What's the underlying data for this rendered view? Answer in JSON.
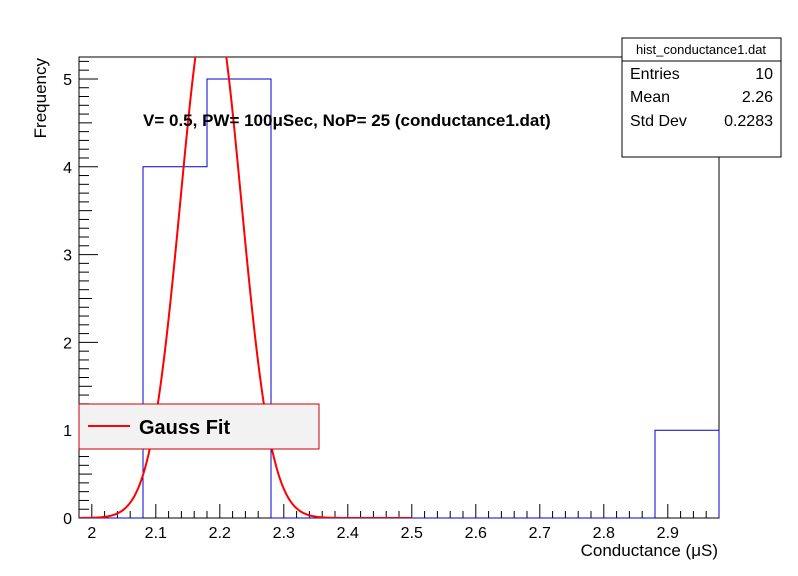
{
  "chart_data": {
    "type": "histogram",
    "xlabel": "Conductance (μS)",
    "ylabel": "Frequency",
    "xlim": [
      1.98,
      2.98
    ],
    "ylim": [
      0,
      5.25
    ],
    "x_ticks": [
      "2",
      "2.1",
      "2.2",
      "2.3",
      "2.4",
      "2.5",
      "2.6",
      "2.7",
      "2.8",
      "2.9"
    ],
    "y_ticks": [
      "0",
      "1",
      "2",
      "3",
      "4",
      "5"
    ],
    "bins": [
      {
        "x0": 1.98,
        "x1": 2.08,
        "count": 0
      },
      {
        "x0": 2.08,
        "x1": 2.18,
        "count": 4
      },
      {
        "x0": 2.18,
        "x1": 2.28,
        "count": 5
      },
      {
        "x0": 2.28,
        "x1": 2.38,
        "count": 0
      },
      {
        "x0": 2.38,
        "x1": 2.48,
        "count": 0
      },
      {
        "x0": 2.48,
        "x1": 2.58,
        "count": 0
      },
      {
        "x0": 2.58,
        "x1": 2.68,
        "count": 0
      },
      {
        "x0": 2.68,
        "x1": 2.78,
        "count": 0
      },
      {
        "x0": 2.78,
        "x1": 2.88,
        "count": 0
      },
      {
        "x0": 2.88,
        "x1": 2.98,
        "count": 1
      }
    ],
    "fit": {
      "function": "gaussian",
      "amplitude": 5.98,
      "mean": 2.186,
      "sigma": 0.0474,
      "x_range": [
        1.98,
        2.5
      ]
    },
    "annotation": "V= 0.5, PW= 100μSec, NoP= 25 (conductance1.dat)",
    "stats": {
      "title": "hist_conductance1.dat",
      "rows": [
        {
          "label": "Entries",
          "value": "10"
        },
        {
          "label": "Mean",
          "value": "2.26"
        },
        {
          "label": "Std Dev",
          "value": "0.2283"
        }
      ]
    },
    "legend": {
      "entries": [
        {
          "label": "Gauss Fit",
          "color": "#ff0000"
        }
      ],
      "placement": "lower-left"
    },
    "colors": {
      "histogram": "#0000cc",
      "fit": "#ff0000",
      "legend_bg": "#f2f2f2",
      "legend_border": "#cc0000"
    }
  }
}
